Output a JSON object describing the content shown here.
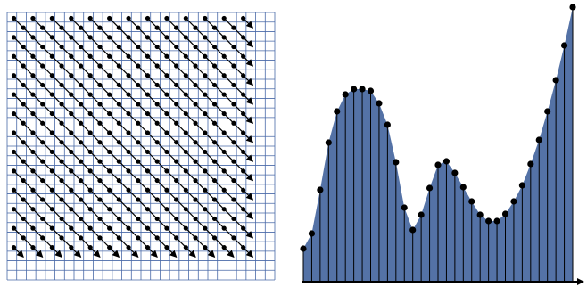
{
  "curve": {
    "samples": [
      37,
      54,
      103,
      156,
      191,
      210,
      216,
      216,
      214,
      200,
      176,
      134,
      83,
      58,
      75,
      105,
      131,
      135,
      122,
      106,
      90,
      75,
      68,
      68,
      76,
      90,
      108,
      132,
      159,
      191,
      226,
      265,
      308
    ]
  }
}
